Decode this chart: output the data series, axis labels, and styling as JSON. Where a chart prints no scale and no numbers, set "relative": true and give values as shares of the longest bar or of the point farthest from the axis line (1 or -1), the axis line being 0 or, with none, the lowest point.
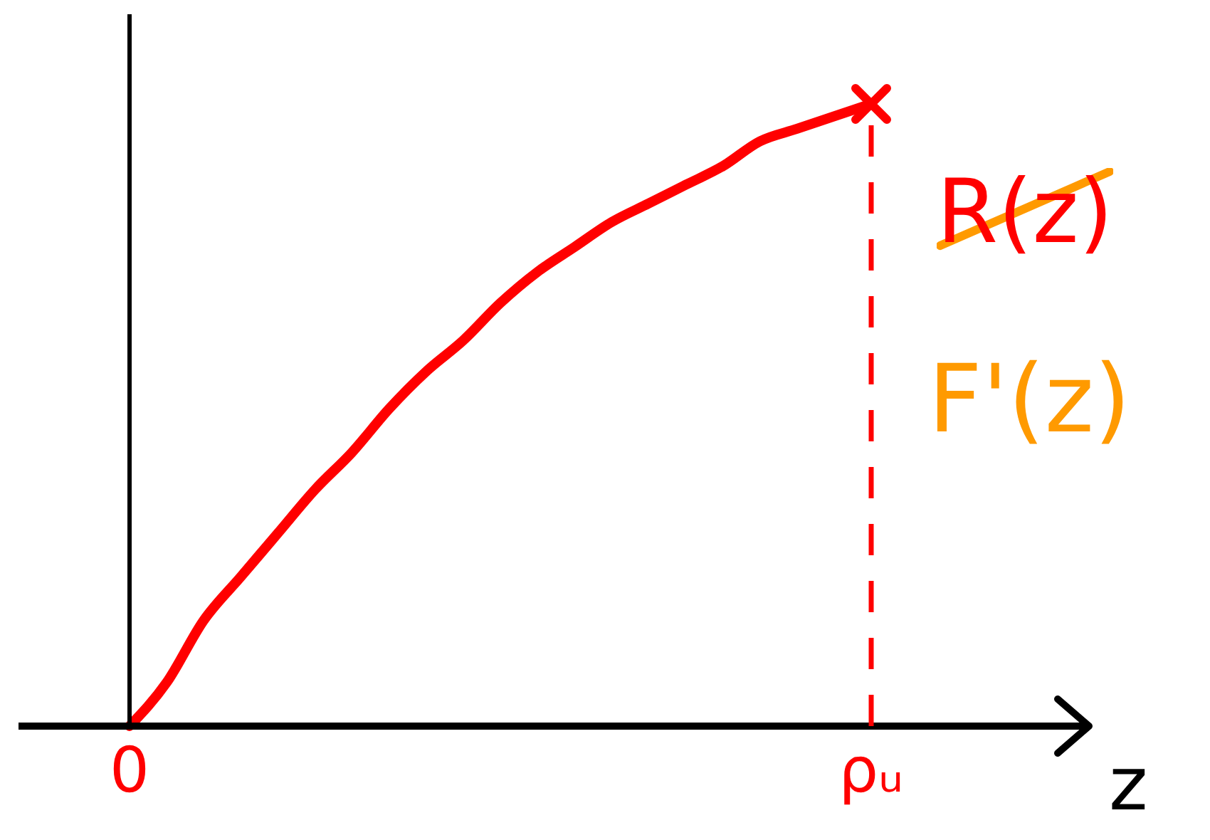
{
  "chart_data": {
    "type": "line",
    "xlabel": "z",
    "annotations": [
      "F'(z)"
    ],
    "categories": [
      "0",
      null,
      null,
      null,
      null,
      null,
      null,
      null,
      null,
      null,
      null,
      null,
      null,
      null,
      null,
      null,
      null,
      null,
      null,
      null,
      "ρᵤ"
    ],
    "series": [
      {
        "name": "R(z)",
        "color": "#ff0000",
        "marker": "none",
        "values": [
          0,
          0.07,
          0.17,
          0.24,
          0.31,
          0.38,
          0.44,
          0.51,
          0.57,
          0.62,
          0.68,
          0.73,
          0.77,
          0.81,
          0.84,
          0.87,
          0.9,
          0.94,
          0.96,
          0.98,
          1
        ]
      },
      {
        "type": "lollipop",
        "color": "#ff0000",
        "marker": "cross",
        "line_style": "dashed",
        "values": [
          null,
          null,
          null,
          null,
          null,
          null,
          null,
          null,
          null,
          null,
          null,
          null,
          null,
          null,
          null,
          null,
          null,
          null,
          null,
          null,
          1
        ]
      }
    ],
    "relative": true,
    "tick_labels": "x"
  }
}
